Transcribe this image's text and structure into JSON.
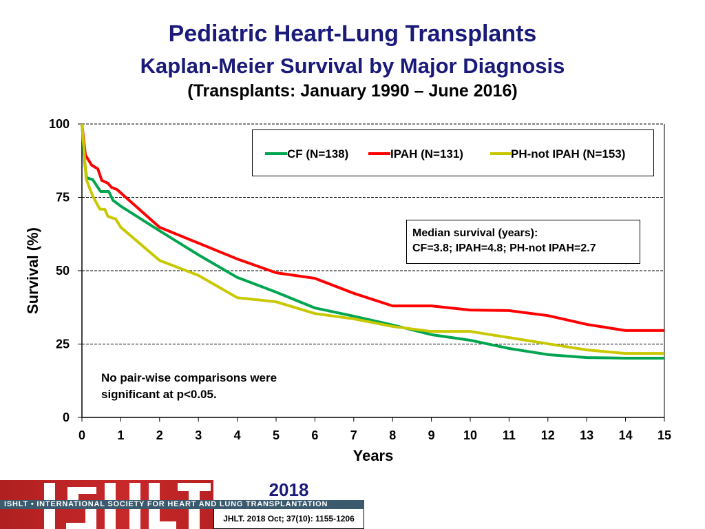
{
  "chart_data": {
    "type": "line",
    "title": "Pediatric Heart-Lung Transplants",
    "subtitle": "Kaplan-Meier Survival by Major Diagnosis",
    "subtitle2": "(Transplants: January 1990 – June 2016)",
    "xlabel": "Years",
    "ylabel": "Survival (%)",
    "xlim": [
      0,
      15
    ],
    "ylim": [
      0,
      100
    ],
    "xticks": [
      "0",
      "1",
      "2",
      "3",
      "4",
      "5",
      "6",
      "7",
      "8",
      "9",
      "10",
      "11",
      "12",
      "13",
      "14",
      "15"
    ],
    "yticks": [
      "0",
      "25",
      "50",
      "75",
      "100"
    ],
    "grid": "horizontal dashed",
    "legend_placement": "top-right",
    "series": [
      {
        "name": "CF (N=138)",
        "color": "#00a550",
        "x": [
          0,
          0.07,
          0.12,
          0.28,
          0.48,
          0.69,
          0.8,
          1.0,
          2,
          3,
          4,
          5,
          6,
          7,
          8,
          9,
          10,
          11,
          12,
          13,
          14,
          15
        ],
        "y": [
          100,
          87,
          81.7,
          81,
          77,
          77,
          74,
          72,
          63.6,
          55.4,
          47.7,
          42.7,
          37.3,
          34.5,
          31.5,
          28.2,
          26.3,
          23.5,
          21.4,
          20.4,
          20.2,
          20.2
        ]
      },
      {
        "name": "IPAH (N=131)",
        "color": "#ff0000",
        "x": [
          0,
          0.09,
          0.25,
          0.41,
          0.51,
          0.67,
          0.76,
          0.9,
          1.08,
          2,
          3,
          4,
          5,
          6,
          7,
          8,
          9,
          10,
          11,
          12,
          13,
          14,
          15
        ],
        "y": [
          100,
          89.4,
          86,
          84.7,
          80.8,
          79.8,
          78.4,
          77.7,
          75.6,
          64.8,
          59.4,
          54,
          49.3,
          47.4,
          42.3,
          38,
          38,
          36.6,
          36.4,
          34.7,
          31.7,
          29.6,
          29.6
        ]
      },
      {
        "name": "PH-not IPAH (N=153)",
        "color": "#c8c800",
        "x": [
          0,
          0.05,
          0.11,
          0.28,
          0.46,
          0.59,
          0.67,
          0.87,
          1.0,
          2,
          3,
          4,
          5,
          6,
          7,
          8,
          9,
          10,
          11,
          12,
          13,
          14,
          15
        ],
        "y": [
          100,
          91.8,
          81.2,
          75.4,
          71,
          70.9,
          68.5,
          67.6,
          64.8,
          53.5,
          48.4,
          40.8,
          39.4,
          35.4,
          33.6,
          31,
          29.3,
          29.3,
          27.2,
          25.1,
          23,
          21.8,
          21.8
        ]
      }
    ],
    "annotations": {
      "median_title": "Median survival (years):",
      "median_values": "CF=3.8; IPAH=4.8; PH-not IPAH=2.7",
      "note_line1": "No pair-wise comparisons were",
      "note_line2": "significant at p<0.05."
    }
  },
  "footer": {
    "logo_text": "ISHLT",
    "society": "ISHLT • INTERNATIONAL SOCIETY FOR HEART AND LUNG TRANSPLANTATION",
    "year": "2018",
    "citation": "JHLT. 2018 Oct; 37(10): 1155-1206"
  }
}
